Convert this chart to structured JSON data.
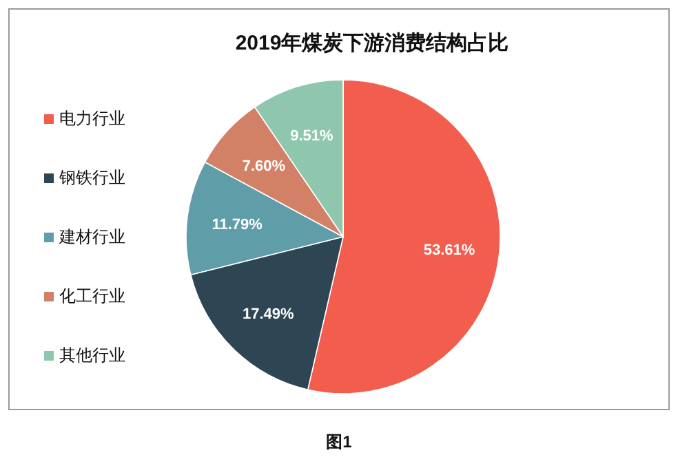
{
  "chart_data": {
    "type": "pie",
    "title": "2019年煤炭下游消费结构占比",
    "categories": [
      "电力行业",
      "钢铁行业",
      "建材行业",
      "化工行业",
      "其他行业"
    ],
    "values": [
      53.61,
      17.49,
      11.79,
      7.6,
      9.51
    ],
    "value_labels": [
      "53.61%",
      "17.49%",
      "11.79%",
      "7.60%",
      "9.51%"
    ],
    "colors": [
      "#f25d4e",
      "#2e4553",
      "#5f9ea8",
      "#d38166",
      "#8fc7ae"
    ],
    "legend": "left",
    "annotations": [
      "图1"
    ]
  }
}
